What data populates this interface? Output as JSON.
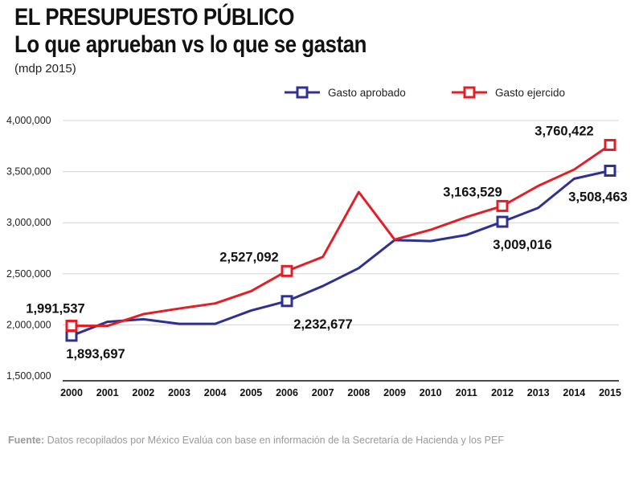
{
  "title": "EL PRESUPUESTO PÚBLICO",
  "subtitle": "Lo que aprueban vs lo que se gastan",
  "units": "(mdp 2015)",
  "source": {
    "label": "Fuente:",
    "text": " Datos recopilados por México Evalúa con base en información de la Secretaría de Hacienda y los PEF"
  },
  "chart_data": {
    "type": "line",
    "title": "EL PRESUPUESTO PÚBLICO",
    "subtitle": "Lo que aprueban vs lo que se gastan",
    "xlabel": "",
    "ylabel": "(mdp 2015)",
    "ylim": [
      1500000,
      4000000
    ],
    "y_ticks": [
      1500000,
      2000000,
      2500000,
      3000000,
      3500000,
      4000000
    ],
    "y_tick_labels": [
      "1,500,000",
      "2,000,000",
      "2,500,000",
      "3,000,000",
      "3,500,000",
      "4,000,000"
    ],
    "grid": true,
    "legend_position": "top-right",
    "categories": [
      "2000",
      "2001",
      "2002",
      "2003",
      "2004",
      "2005",
      "2006",
      "2007",
      "2008",
      "2009",
      "2010",
      "2011",
      "2012",
      "2013",
      "2014",
      "2015"
    ],
    "series": [
      {
        "name": "Gasto aprobado",
        "color": "#2e3192",
        "values": [
          1893697,
          2030000,
          2055000,
          2010000,
          2010000,
          2140000,
          2232677,
          2380000,
          2555000,
          2830000,
          2820000,
          2880000,
          3009016,
          3145000,
          3430000,
          3508463
        ],
        "highlight": [
          {
            "index": 0,
            "label": "1,893,697",
            "placement": "below"
          },
          {
            "index": 6,
            "label": "2,232,677",
            "placement": "below"
          },
          {
            "index": 12,
            "label": "3,009,016",
            "placement": "below"
          },
          {
            "index": 15,
            "label": "3,508,463",
            "placement": "below"
          }
        ]
      },
      {
        "name": "Gasto ejercido",
        "color": "#e11f26",
        "values": [
          1991537,
          1990000,
          2105000,
          2160000,
          2210000,
          2330000,
          2527092,
          2665000,
          3300000,
          2835000,
          2930000,
          3055000,
          3163529,
          3360000,
          3520000,
          3760422
        ],
        "highlight": [
          {
            "index": 0,
            "label": "1,991,537",
            "placement": "above"
          },
          {
            "index": 6,
            "label": "2,527,092",
            "placement": "above"
          },
          {
            "index": 12,
            "label": "3,163,529",
            "placement": "above"
          },
          {
            "index": 15,
            "label": "3,760,422",
            "placement": "above"
          }
        ]
      }
    ]
  }
}
